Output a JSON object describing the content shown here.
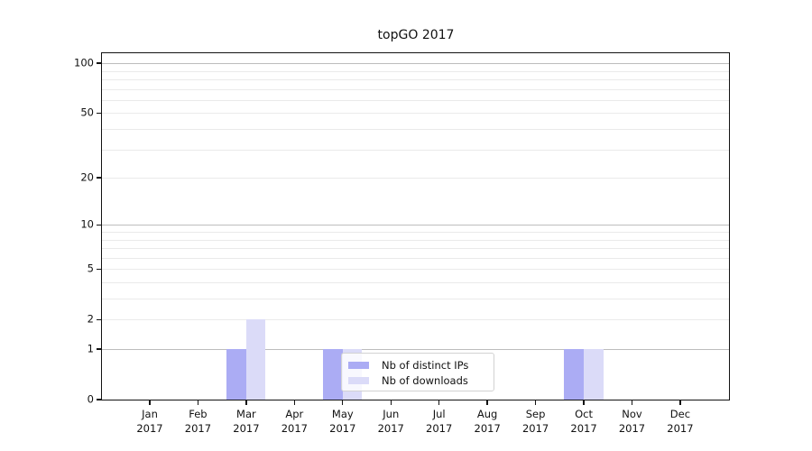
{
  "chart": {
    "title": "topGO 2017",
    "legend": [
      {
        "label": "Nb of distinct IPs",
        "series": "ips"
      },
      {
        "label": "Nb of downloads",
        "series": "downloads"
      }
    ],
    "colors": {
      "ips": "#abacf4",
      "downloads": "#dbdbf8",
      "major_gridline": "#bdbdbd",
      "minor_gridline": "#eaeaea",
      "axis": "#121212"
    }
  },
  "chart_data": {
    "type": "bar",
    "title": "topGO 2017",
    "categories": [
      "Jan 2017",
      "Feb 2017",
      "Mar 2017",
      "Apr 2017",
      "May 2017",
      "Jun 2017",
      "Jul 2017",
      "Aug 2017",
      "Sep 2017",
      "Oct 2017",
      "Nov 2017",
      "Dec 2017"
    ],
    "x_label_line1": [
      "Jan",
      "Feb",
      "Mar",
      "Apr",
      "May",
      "Jun",
      "Jul",
      "Aug",
      "Sep",
      "Oct",
      "Nov",
      "Dec"
    ],
    "x_label_line2": [
      "2017",
      "2017",
      "2017",
      "2017",
      "2017",
      "2017",
      "2017",
      "2017",
      "2017",
      "2017",
      "2017",
      "2017"
    ],
    "series": [
      {
        "name": "Nb of distinct IPs",
        "key": "ips",
        "values": [
          0,
          0,
          1,
          0,
          1,
          0,
          0,
          0,
          0,
          1,
          0,
          0
        ]
      },
      {
        "name": "Nb of downloads",
        "key": "downloads",
        "values": [
          0,
          0,
          2,
          0,
          1,
          0,
          0,
          0,
          0,
          1,
          0,
          0
        ]
      }
    ],
    "xlabel": "",
    "ylabel": "",
    "yscale": "log1p",
    "ylim": [
      0,
      116
    ],
    "yticks": [
      0,
      1,
      2,
      5,
      10,
      20,
      50,
      100
    ],
    "major_gridlines": [
      1,
      10,
      100
    ],
    "minor_gridlines": [
      2,
      3,
      4,
      5,
      6,
      7,
      8,
      9,
      20,
      30,
      40,
      50,
      60,
      70,
      80,
      90
    ],
    "grid": "on",
    "legend_position": "lower-center-inside"
  }
}
